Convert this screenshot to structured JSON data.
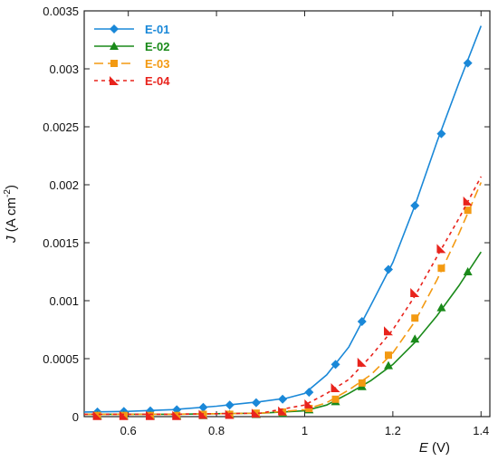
{
  "chart_data": {
    "type": "line",
    "xlabel_italic": "E",
    "xlabel_unit": "(V)",
    "ylabel_italic": "J",
    "ylabel_unit": "(A cm",
    "ylabel_sup": "-2",
    "ylabel_close": ")",
    "xlim": [
      0.5,
      1.42
    ],
    "ylim": [
      0,
      0.0035
    ],
    "xticks": [
      0.6,
      0.8,
      1,
      1.2,
      1.4
    ],
    "xtick_labels": [
      "0.6",
      "0.8",
      "1",
      "1.2",
      "1.4"
    ],
    "yticks": [
      0,
      0.0005,
      0.001,
      0.0015,
      0.002,
      0.0025,
      0.003,
      0.0035
    ],
    "ytick_labels": [
      "0",
      "0.0005",
      "0.001",
      "0.0015",
      "0.002",
      "0.0025",
      "0.003",
      "0.0035"
    ],
    "legend_position": "top-left",
    "series": [
      {
        "name": "E-01",
        "color": "#1a88d8",
        "marker": "diamond",
        "dash": "solid",
        "curve": [
          [
            0.5,
            4e-05
          ],
          [
            0.6,
            4.5e-05
          ],
          [
            0.7,
            6e-05
          ],
          [
            0.8,
            9e-05
          ],
          [
            0.9,
            0.00013
          ],
          [
            0.96,
            0.00016
          ],
          [
            1.0,
            0.0002
          ],
          [
            1.05,
            0.00036
          ],
          [
            1.1,
            0.0006
          ],
          [
            1.15,
            0.00096
          ],
          [
            1.2,
            0.00133
          ],
          [
            1.25,
            0.00182
          ],
          [
            1.3,
            0.00237
          ],
          [
            1.35,
            0.00288
          ],
          [
            1.4,
            0.00337
          ]
        ],
        "markers": [
          [
            0.53,
            4e-05
          ],
          [
            0.59,
            4.5e-05
          ],
          [
            0.65,
            5e-05
          ],
          [
            0.71,
            6e-05
          ],
          [
            0.77,
            8e-05
          ],
          [
            0.83,
            0.0001
          ],
          [
            0.89,
            0.00012
          ],
          [
            0.95,
            0.00015
          ],
          [
            1.01,
            0.00021
          ],
          [
            1.07,
            0.00045
          ],
          [
            1.13,
            0.00082
          ],
          [
            1.19,
            0.00127
          ],
          [
            1.25,
            0.00182
          ],
          [
            1.31,
            0.00244
          ],
          [
            1.37,
            0.00305
          ]
        ]
      },
      {
        "name": "E-02",
        "color": "#1a8a1a",
        "marker": "triangle",
        "dash": "solid",
        "curve": [
          [
            0.5,
            2e-05
          ],
          [
            0.7,
            2e-05
          ],
          [
            0.9,
            3e-05
          ],
          [
            1.0,
            5e-05
          ],
          [
            1.05,
            0.0001
          ],
          [
            1.1,
            0.0002
          ],
          [
            1.15,
            0.00031
          ],
          [
            1.2,
            0.00045
          ],
          [
            1.25,
            0.00064
          ],
          [
            1.3,
            0.00087
          ],
          [
            1.35,
            0.00113
          ],
          [
            1.4,
            0.00142
          ]
        ],
        "markers": [
          [
            0.53,
            1e-05
          ],
          [
            0.59,
            1e-05
          ],
          [
            0.65,
            1e-05
          ],
          [
            0.71,
            1e-05
          ],
          [
            0.77,
            1e-05
          ],
          [
            0.83,
            2e-05
          ],
          [
            0.89,
            2e-05
          ],
          [
            0.95,
            3e-05
          ],
          [
            1.01,
            6e-05
          ],
          [
            1.07,
            0.00013
          ],
          [
            1.13,
            0.00026
          ],
          [
            1.19,
            0.00044
          ],
          [
            1.25,
            0.00067
          ],
          [
            1.31,
            0.00094
          ],
          [
            1.37,
            0.00125
          ]
        ]
      },
      {
        "name": "E-03",
        "color": "#f39a12",
        "marker": "square",
        "dash": "longdash",
        "curve": [
          [
            0.5,
            2e-05
          ],
          [
            0.7,
            2e-05
          ],
          [
            0.9,
            3e-05
          ],
          [
            1.0,
            6e-05
          ],
          [
            1.05,
            0.00012
          ],
          [
            1.1,
            0.00023
          ],
          [
            1.15,
            0.00036
          ],
          [
            1.2,
            0.00055
          ],
          [
            1.25,
            0.00082
          ],
          [
            1.3,
            0.00118
          ],
          [
            1.35,
            0.00158
          ],
          [
            1.4,
            0.00202
          ]
        ],
        "markers": [
          [
            0.53,
            1e-05
          ],
          [
            0.59,
            1e-05
          ],
          [
            0.65,
            1e-05
          ],
          [
            0.71,
            1e-05
          ],
          [
            0.77,
            2e-05
          ],
          [
            0.83,
            2e-05
          ],
          [
            0.89,
            3e-05
          ],
          [
            0.95,
            4e-05
          ],
          [
            1.01,
            7e-05
          ],
          [
            1.07,
            0.00015
          ],
          [
            1.13,
            0.00029
          ],
          [
            1.19,
            0.00053
          ],
          [
            1.25,
            0.00085
          ],
          [
            1.31,
            0.00128
          ],
          [
            1.37,
            0.00178
          ]
        ]
      },
      {
        "name": "E-04",
        "color": "#e8231c",
        "marker": "half-triangle",
        "dash": "dashed",
        "curve": [
          [
            0.5,
            2e-05
          ],
          [
            0.7,
            2e-05
          ],
          [
            0.9,
            3e-05
          ],
          [
            1.0,
            0.0001
          ],
          [
            1.05,
            0.0002
          ],
          [
            1.1,
            0.00032
          ],
          [
            1.15,
            0.00052
          ],
          [
            1.2,
            0.00075
          ],
          [
            1.25,
            0.00104
          ],
          [
            1.3,
            0.00138
          ],
          [
            1.35,
            0.00171
          ],
          [
            1.4,
            0.00207
          ]
        ],
        "markers": [
          [
            0.53,
            1e-05
          ],
          [
            0.59,
            1e-05
          ],
          [
            0.65,
            1e-05
          ],
          [
            0.71,
            1e-05
          ],
          [
            0.77,
            2e-05
          ],
          [
            0.83,
            2e-05
          ],
          [
            0.89,
            3e-05
          ],
          [
            0.95,
            5e-05
          ],
          [
            1.01,
            0.00011
          ],
          [
            1.07,
            0.00025
          ],
          [
            1.13,
            0.00047
          ],
          [
            1.19,
            0.00074
          ],
          [
            1.25,
            0.00107
          ],
          [
            1.31,
            0.00145
          ],
          [
            1.37,
            0.00186
          ]
        ]
      }
    ]
  }
}
